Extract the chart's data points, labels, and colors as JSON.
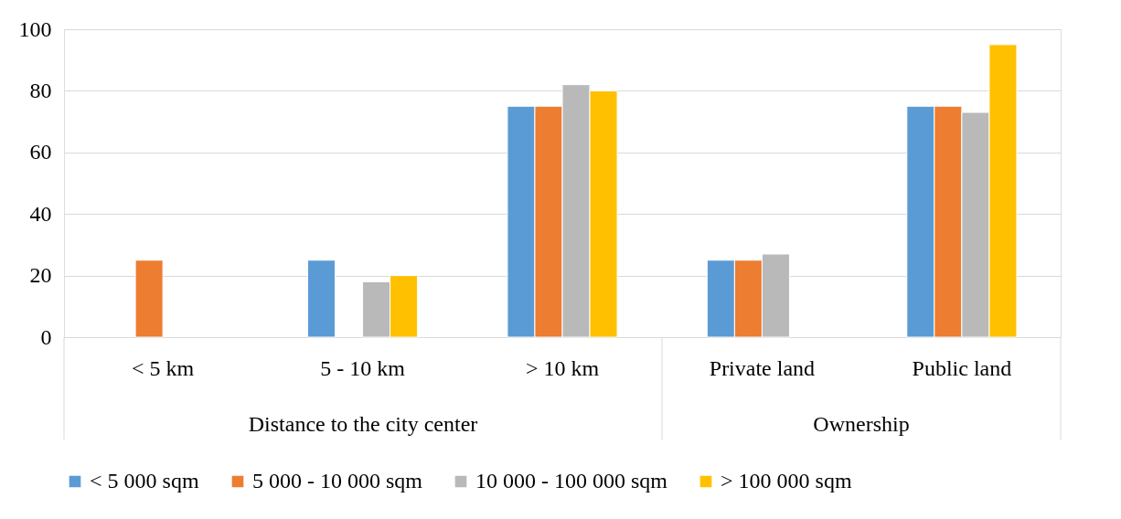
{
  "chart_data": {
    "type": "bar",
    "categories": [
      "< 5 km",
      "5 - 10 km",
      "> 10 km",
      "Private land",
      "Public land"
    ],
    "series": [
      {
        "name": "< 5 000 sqm",
        "color": "#5b9bd5",
        "values": [
          null,
          25,
          75,
          25,
          75
        ]
      },
      {
        "name": "5 000 - 10 000 sqm",
        "color": "#ed7d31",
        "values": [
          25,
          null,
          75,
          25,
          75
        ]
      },
      {
        "name": "10 000 - 100 000 sqm",
        "color": "#b9b9b9",
        "values": [
          null,
          18,
          82,
          27,
          73
        ]
      },
      {
        "name": "> 100 000 sqm",
        "color": "#ffc000",
        "values": [
          null,
          20,
          80,
          null,
          95
        ]
      }
    ],
    "ylim": [
      0,
      100
    ],
    "yticks": [
      0,
      20,
      40,
      60,
      80,
      100
    ],
    "grid": "y",
    "legend": "bottom",
    "annotations": [
      "Distance to the city center",
      "Ownership"
    ]
  }
}
